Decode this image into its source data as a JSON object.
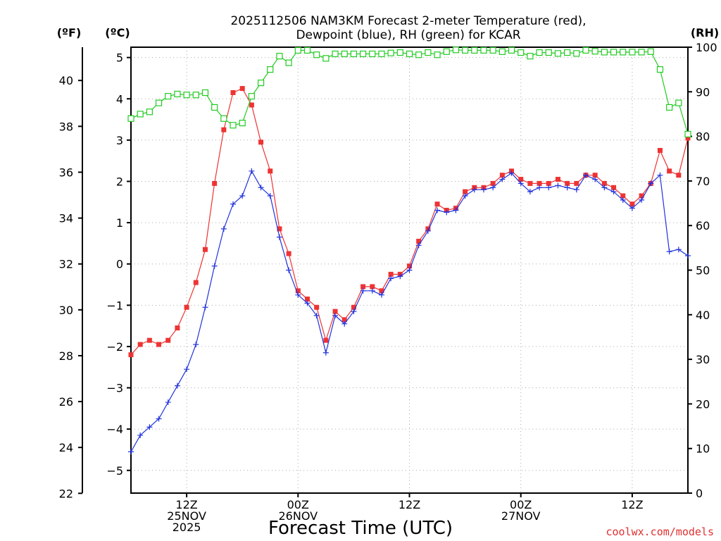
{
  "chart_data": {
    "type": "line",
    "title_line1": "2025112506 NAM3KM Forecast 2-meter Temperature (red),",
    "title_line2": "Dewpoint (blue), RH (green) for KCAR",
    "xlabel": "Forecast Time (UTC)",
    "credit": "coolwx.com/models",
    "left_axis_f_unit": "(ºF)",
    "left_axis_c_unit": "(ºC)",
    "right_axis_unit": "(RH)",
    "x_range_hours": [
      6,
      66
    ],
    "c_range": [
      -5.55,
      5.25
    ],
    "rh_range": [
      0,
      100
    ],
    "c_ticks": [
      5,
      4,
      3,
      2,
      1,
      0,
      -1,
      -2,
      -3,
      -4,
      -5
    ],
    "f_ticks": [
      40,
      38,
      36,
      34,
      32,
      30,
      28,
      26,
      24,
      22
    ],
    "rh_ticks": [
      100,
      90,
      80,
      70,
      60,
      50,
      40,
      30,
      20,
      10,
      0
    ],
    "x_ticks": [
      {
        "hour": 12,
        "lines": [
          "12Z",
          "25NOV",
          "2025"
        ]
      },
      {
        "hour": 24,
        "lines": [
          "00Z",
          "26NOV"
        ]
      },
      {
        "hour": 36,
        "lines": [
          "12Z"
        ]
      },
      {
        "hour": 48,
        "lines": [
          "00Z",
          "27NOV"
        ]
      },
      {
        "hour": 60,
        "lines": [
          "12Z"
        ]
      }
    ],
    "grid": true,
    "series": [
      {
        "name": "2-meter Temperature",
        "axis": "celsius",
        "color": "#ee3333",
        "marker": "filled-square",
        "points": [
          [
            6,
            -2.2
          ],
          [
            7,
            -1.95
          ],
          [
            8,
            -1.85
          ],
          [
            9,
            -1.95
          ],
          [
            10,
            -1.85
          ],
          [
            11,
            -1.55
          ],
          [
            12,
            -1.05
          ],
          [
            13,
            -0.45
          ],
          [
            14,
            0.35
          ],
          [
            15,
            1.95
          ],
          [
            16,
            3.25
          ],
          [
            17,
            4.15
          ],
          [
            18,
            4.25
          ],
          [
            19,
            3.85
          ],
          [
            20,
            2.95
          ],
          [
            21,
            2.25
          ],
          [
            22,
            0.85
          ],
          [
            23,
            0.25
          ],
          [
            24,
            -0.65
          ],
          [
            25,
            -0.85
          ],
          [
            26,
            -1.05
          ],
          [
            27,
            -1.85
          ],
          [
            28,
            -1.15
          ],
          [
            29,
            -1.35
          ],
          [
            30,
            -1.05
          ],
          [
            31,
            -0.55
          ],
          [
            32,
            -0.55
          ],
          [
            33,
            -0.65
          ],
          [
            34,
            -0.25
          ],
          [
            35,
            -0.25
          ],
          [
            36,
            -0.05
          ],
          [
            37,
            0.55
          ],
          [
            38,
            0.85
          ],
          [
            39,
            1.45
          ],
          [
            40,
            1.3
          ],
          [
            41,
            1.35
          ],
          [
            42,
            1.75
          ],
          [
            43,
            1.85
          ],
          [
            44,
            1.85
          ],
          [
            45,
            1.95
          ],
          [
            46,
            2.15
          ],
          [
            47,
            2.25
          ],
          [
            48,
            2.05
          ],
          [
            49,
            1.95
          ],
          [
            50,
            1.95
          ],
          [
            51,
            1.95
          ],
          [
            52,
            2.05
          ],
          [
            53,
            1.95
          ],
          [
            54,
            1.95
          ],
          [
            55,
            2.15
          ],
          [
            56,
            2.15
          ],
          [
            57,
            1.95
          ],
          [
            58,
            1.85
          ],
          [
            59,
            1.65
          ],
          [
            60,
            1.45
          ],
          [
            61,
            1.65
          ],
          [
            62,
            1.95
          ],
          [
            63,
            2.75
          ],
          [
            64,
            2.25
          ],
          [
            65,
            2.15
          ],
          [
            66,
            3.05
          ]
        ]
      },
      {
        "name": "Dewpoint",
        "axis": "celsius",
        "color": "#2233dd",
        "marker": "plus",
        "points": [
          [
            6,
            -4.55
          ],
          [
            7,
            -4.15
          ],
          [
            8,
            -3.95
          ],
          [
            9,
            -3.75
          ],
          [
            10,
            -3.35
          ],
          [
            11,
            -2.95
          ],
          [
            12,
            -2.55
          ],
          [
            13,
            -1.95
          ],
          [
            14,
            -1.05
          ],
          [
            15,
            -0.05
          ],
          [
            16,
            0.85
          ],
          [
            17,
            1.45
          ],
          [
            18,
            1.65
          ],
          [
            19,
            2.25
          ],
          [
            20,
            1.85
          ],
          [
            21,
            1.65
          ],
          [
            22,
            0.65
          ],
          [
            23,
            -0.15
          ],
          [
            24,
            -0.75
          ],
          [
            25,
            -0.95
          ],
          [
            26,
            -1.25
          ],
          [
            27,
            -2.15
          ],
          [
            28,
            -1.25
          ],
          [
            29,
            -1.45
          ],
          [
            30,
            -1.15
          ],
          [
            31,
            -0.65
          ],
          [
            32,
            -0.65
          ],
          [
            33,
            -0.75
          ],
          [
            34,
            -0.35
          ],
          [
            35,
            -0.3
          ],
          [
            36,
            -0.15
          ],
          [
            37,
            0.45
          ],
          [
            38,
            0.8
          ],
          [
            39,
            1.3
          ],
          [
            40,
            1.25
          ],
          [
            41,
            1.3
          ],
          [
            42,
            1.65
          ],
          [
            43,
            1.8
          ],
          [
            44,
            1.8
          ],
          [
            45,
            1.85
          ],
          [
            46,
            2.05
          ],
          [
            47,
            2.2
          ],
          [
            48,
            1.95
          ],
          [
            49,
            1.75
          ],
          [
            50,
            1.85
          ],
          [
            51,
            1.85
          ],
          [
            52,
            1.9
          ],
          [
            53,
            1.85
          ],
          [
            54,
            1.8
          ],
          [
            55,
            2.15
          ],
          [
            56,
            2.05
          ],
          [
            57,
            1.85
          ],
          [
            58,
            1.75
          ],
          [
            59,
            1.55
          ],
          [
            60,
            1.35
          ],
          [
            61,
            1.55
          ],
          [
            62,
            1.95
          ],
          [
            63,
            2.15
          ],
          [
            64,
            0.3
          ],
          [
            65,
            0.35
          ],
          [
            66,
            0.2
          ]
        ]
      },
      {
        "name": "RH",
        "axis": "rh",
        "color": "#22cc22",
        "marker": "open-square",
        "points": [
          [
            6,
            84
          ],
          [
            7,
            85
          ],
          [
            8,
            85.5
          ],
          [
            9,
            87.5
          ],
          [
            10,
            89
          ],
          [
            11,
            89.5
          ],
          [
            12,
            89.3
          ],
          [
            13,
            89.3
          ],
          [
            14,
            89.8
          ],
          [
            15,
            86.5
          ],
          [
            16,
            84
          ],
          [
            17,
            82.5
          ],
          [
            18,
            83
          ],
          [
            19,
            89
          ],
          [
            20,
            92
          ],
          [
            21,
            95
          ],
          [
            22,
            98
          ],
          [
            23,
            96.5
          ],
          [
            24,
            99.3
          ],
          [
            25,
            99.3
          ],
          [
            26,
            98.3
          ],
          [
            27,
            97.5
          ],
          [
            28,
            98.5
          ],
          [
            29,
            98.5
          ],
          [
            30,
            98.5
          ],
          [
            31,
            98.5
          ],
          [
            32,
            98.5
          ],
          [
            33,
            98.5
          ],
          [
            34,
            98.7
          ],
          [
            35,
            98.8
          ],
          [
            36,
            98.5
          ],
          [
            37,
            98.3
          ],
          [
            38,
            98.8
          ],
          [
            39,
            98.3
          ],
          [
            40,
            99
          ],
          [
            41,
            99.4
          ],
          [
            42,
            99.3
          ],
          [
            43,
            99.3
          ],
          [
            44,
            99.3
          ],
          [
            45,
            99.3
          ],
          [
            46,
            99
          ],
          [
            47,
            99.3
          ],
          [
            48,
            98.8
          ],
          [
            49,
            98
          ],
          [
            50,
            98.8
          ],
          [
            51,
            98.8
          ],
          [
            52,
            98.6
          ],
          [
            53,
            98.8
          ],
          [
            54,
            98.6
          ],
          [
            55,
            99.3
          ],
          [
            56,
            99.1
          ],
          [
            57,
            98.9
          ],
          [
            58,
            98.9
          ],
          [
            59,
            98.9
          ],
          [
            60,
            98.9
          ],
          [
            61,
            98.9
          ],
          [
            62,
            99
          ],
          [
            63,
            95
          ],
          [
            64,
            86.5
          ],
          [
            65,
            87.5
          ],
          [
            66,
            80.5
          ]
        ]
      }
    ]
  }
}
